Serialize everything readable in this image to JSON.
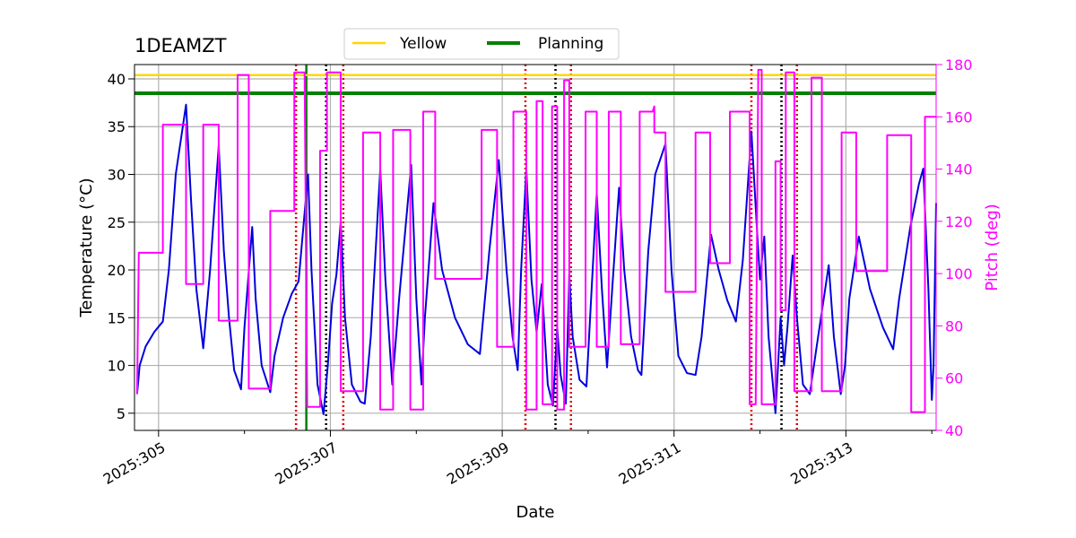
{
  "chart_data": {
    "type": "line",
    "title": "1DEAMZT",
    "xlabel": "Date",
    "ylabel": "Temperature ($^\\circ$C)",
    "ylabel_display": "Temperature (°C)",
    "y2label": "Pitch (deg)",
    "xlim": [
      304.72,
      314.05
    ],
    "ylim": [
      3.2,
      41.5
    ],
    "y2lim": [
      40,
      180
    ],
    "grid": true,
    "legend_position": "top-center",
    "colors": {
      "temperature": "#0000dd",
      "pitch": "#ff00ff",
      "yellow": "#ffd700",
      "planning": "#008000",
      "red_marker": "#dd0000",
      "black_marker": "#000000",
      "grid": "#b0b0b0",
      "right_axis": "#ff00ff"
    },
    "x_ticks": [
      {
        "value": 305,
        "label": "2025:305"
      },
      {
        "value": 307,
        "label": "2025:307"
      },
      {
        "value": 309,
        "label": "2025:309"
      },
      {
        "value": 311,
        "label": "2025:311"
      },
      {
        "value": 313,
        "label": "2025:313"
      }
    ],
    "x_minor_ticks": [
      306,
      308,
      310,
      312,
      314
    ],
    "y_ticks": [
      5,
      10,
      15,
      20,
      25,
      30,
      35,
      40
    ],
    "y2_ticks": [
      40,
      60,
      80,
      100,
      120,
      140,
      160,
      180
    ],
    "limits": [
      {
        "name": "Yellow",
        "value": 40.4,
        "color": "#ffd700"
      },
      {
        "name": "Planning",
        "value": 38.5,
        "color": "#008000"
      }
    ],
    "vertical_markers": [
      {
        "x": 306.6,
        "color": "#dd0000",
        "style": "dotted"
      },
      {
        "x": 306.72,
        "color": "#008000",
        "style": "solid"
      },
      {
        "x": 306.95,
        "color": "#000000",
        "style": "dotted"
      },
      {
        "x": 307.15,
        "color": "#dd0000",
        "style": "dotted"
      },
      {
        "x": 309.27,
        "color": "#dd0000",
        "style": "dotted"
      },
      {
        "x": 309.62,
        "color": "#000000",
        "style": "dotted"
      },
      {
        "x": 309.8,
        "color": "#dd0000",
        "style": "dotted"
      },
      {
        "x": 311.9,
        "color": "#dd0000",
        "style": "dotted"
      },
      {
        "x": 312.25,
        "color": "#000000",
        "style": "dotted"
      },
      {
        "x": 312.43,
        "color": "#dd0000",
        "style": "dotted"
      }
    ],
    "series": [
      {
        "name": "Temperature",
        "axis": "left",
        "color": "#0000dd",
        "points": [
          [
            304.75,
            7.0
          ],
          [
            304.78,
            10.0
          ],
          [
            304.85,
            12.0
          ],
          [
            304.95,
            13.5
          ],
          [
            305.05,
            14.6
          ],
          [
            305.12,
            20.0
          ],
          [
            305.2,
            30.0
          ],
          [
            305.32,
            37.3
          ],
          [
            305.38,
            27.0
          ],
          [
            305.44,
            18.0
          ],
          [
            305.52,
            11.8
          ],
          [
            305.6,
            20.0
          ],
          [
            305.7,
            33.0
          ],
          [
            305.76,
            22.0
          ],
          [
            305.82,
            15.0
          ],
          [
            305.88,
            9.5
          ],
          [
            305.96,
            7.5
          ],
          [
            306.0,
            14.0
          ],
          [
            306.09,
            24.5
          ],
          [
            306.13,
            17.0
          ],
          [
            306.2,
            10.0
          ],
          [
            306.3,
            7.2
          ],
          [
            306.35,
            11.0
          ],
          [
            306.45,
            15.0
          ],
          [
            306.55,
            17.5
          ],
          [
            306.63,
            18.8
          ],
          [
            306.7,
            26.0
          ],
          [
            306.74,
            30.0
          ],
          [
            306.78,
            20.0
          ],
          [
            306.85,
            8.0
          ],
          [
            306.92,
            4.9
          ],
          [
            306.97,
            10.0
          ],
          [
            307.02,
            16.5
          ],
          [
            307.07,
            19.5
          ],
          [
            307.12,
            25.0
          ],
          [
            307.17,
            15.0
          ],
          [
            307.25,
            8.0
          ],
          [
            307.35,
            6.2
          ],
          [
            307.4,
            6.0
          ],
          [
            307.47,
            13.0
          ],
          [
            307.58,
            30.5
          ],
          [
            307.64,
            19.0
          ],
          [
            307.72,
            8.0
          ],
          [
            307.8,
            17.0
          ],
          [
            307.94,
            31.0
          ],
          [
            308.0,
            17.0
          ],
          [
            308.06,
            8.0
          ],
          [
            308.1,
            15.0
          ],
          [
            308.2,
            27.0
          ],
          [
            308.3,
            20.0
          ],
          [
            308.45,
            15.0
          ],
          [
            308.6,
            12.2
          ],
          [
            308.74,
            11.2
          ],
          [
            308.85,
            22.0
          ],
          [
            308.96,
            31.5
          ],
          [
            309.05,
            20.0
          ],
          [
            309.12,
            13.0
          ],
          [
            309.18,
            9.5
          ],
          [
            309.22,
            20.0
          ],
          [
            309.28,
            30.5
          ],
          [
            309.34,
            19.0
          ],
          [
            309.4,
            13.5
          ],
          [
            309.46,
            18.5
          ],
          [
            309.53,
            8.0
          ],
          [
            309.59,
            5.8
          ],
          [
            309.64,
            14.0
          ],
          [
            309.68,
            9.0
          ],
          [
            309.74,
            6.0
          ],
          [
            309.78,
            19.5
          ],
          [
            309.82,
            13.0
          ],
          [
            309.9,
            8.5
          ],
          [
            309.98,
            7.8
          ],
          [
            310.1,
            28.0
          ],
          [
            310.16,
            18.0
          ],
          [
            310.22,
            9.8
          ],
          [
            310.28,
            18.0
          ],
          [
            310.36,
            28.6
          ],
          [
            310.42,
            20.0
          ],
          [
            310.5,
            13.0
          ],
          [
            310.58,
            9.5
          ],
          [
            310.62,
            9.0
          ],
          [
            310.7,
            22.0
          ],
          [
            310.78,
            30.0
          ],
          [
            310.9,
            33.2
          ],
          [
            310.97,
            20.0
          ],
          [
            311.05,
            11.0
          ],
          [
            311.15,
            9.2
          ],
          [
            311.25,
            9.0
          ],
          [
            311.32,
            13.0
          ],
          [
            311.43,
            23.7
          ],
          [
            311.52,
            20.0
          ],
          [
            311.62,
            16.8
          ],
          [
            311.72,
            14.6
          ],
          [
            311.8,
            21.0
          ],
          [
            311.9,
            34.5
          ],
          [
            311.96,
            25.0
          ],
          [
            312.0,
            19.0
          ],
          [
            312.05,
            23.5
          ],
          [
            312.1,
            13.0
          ],
          [
            312.18,
            5.0
          ],
          [
            312.24,
            15.0
          ],
          [
            312.28,
            10.0
          ],
          [
            312.32,
            14.0
          ],
          [
            312.38,
            21.5
          ],
          [
            312.43,
            15.0
          ],
          [
            312.5,
            8.0
          ],
          [
            312.58,
            7.0
          ],
          [
            312.66,
            12.0
          ],
          [
            312.8,
            20.5
          ],
          [
            312.86,
            13.0
          ],
          [
            312.94,
            7.0
          ],
          [
            312.99,
            10.0
          ],
          [
            313.04,
            17.0
          ],
          [
            313.15,
            23.5
          ],
          [
            313.28,
            18.0
          ],
          [
            313.43,
            14.0
          ],
          [
            313.55,
            11.7
          ],
          [
            313.62,
            17.0
          ],
          [
            313.75,
            24.5
          ],
          [
            313.85,
            29.0
          ],
          [
            313.9,
            30.6
          ],
          [
            313.96,
            18.0
          ],
          [
            314.0,
            6.4
          ],
          [
            314.02,
            10.0
          ],
          [
            314.05,
            27.0
          ]
        ]
      },
      {
        "name": "Pitch",
        "axis": "right",
        "color": "#ff00ff",
        "points": [
          [
            304.75,
            54.0
          ],
          [
            304.77,
            108.0
          ],
          [
            305.05,
            108.0
          ],
          [
            305.05,
            157.0
          ],
          [
            305.32,
            157.0
          ],
          [
            305.32,
            96.0
          ],
          [
            305.52,
            96.0
          ],
          [
            305.52,
            157.0
          ],
          [
            305.7,
            157.0
          ],
          [
            305.7,
            82.0
          ],
          [
            305.92,
            82.0
          ],
          [
            305.92,
            176.0
          ],
          [
            306.05,
            176.0
          ],
          [
            306.05,
            56.0
          ],
          [
            306.3,
            56.0
          ],
          [
            306.3,
            124.0
          ],
          [
            306.58,
            124.0
          ],
          [
            306.58,
            177.0
          ],
          [
            306.7,
            177.0
          ],
          [
            306.73,
            49.0
          ],
          [
            306.88,
            49.0
          ],
          [
            306.88,
            147.0
          ],
          [
            306.96,
            147.0
          ],
          [
            306.96,
            177.0
          ],
          [
            307.12,
            177.0
          ],
          [
            307.12,
            55.0
          ],
          [
            307.38,
            55.0
          ],
          [
            307.38,
            154.0
          ],
          [
            307.58,
            154.0
          ],
          [
            307.58,
            48.0
          ],
          [
            307.73,
            48.0
          ],
          [
            307.73,
            155.0
          ],
          [
            307.93,
            155.0
          ],
          [
            307.93,
            48.0
          ],
          [
            308.08,
            48.0
          ],
          [
            308.08,
            162.0
          ],
          [
            308.22,
            162.0
          ],
          [
            308.22,
            98.0
          ],
          [
            308.76,
            98.0
          ],
          [
            308.76,
            155.0
          ],
          [
            308.94,
            155.0
          ],
          [
            308.94,
            72.0
          ],
          [
            309.13,
            72.0
          ],
          [
            309.13,
            162.0
          ],
          [
            309.28,
            162.0
          ],
          [
            309.28,
            48.0
          ],
          [
            309.4,
            48.0
          ],
          [
            309.4,
            166.0
          ],
          [
            309.47,
            166.0
          ],
          [
            309.47,
            50.0
          ],
          [
            309.58,
            50.0
          ],
          [
            309.58,
            164.0
          ],
          [
            309.64,
            164.0
          ],
          [
            309.64,
            48.0
          ],
          [
            309.72,
            48.0
          ],
          [
            309.72,
            174.0
          ],
          [
            309.78,
            174.0
          ],
          [
            309.78,
            72.0
          ],
          [
            309.97,
            72.0
          ],
          [
            309.97,
            162.0
          ],
          [
            310.1,
            162.0
          ],
          [
            310.1,
            72.0
          ],
          [
            310.24,
            72.0
          ],
          [
            310.24,
            162.0
          ],
          [
            310.38,
            162.0
          ],
          [
            310.38,
            73.0
          ],
          [
            310.6,
            73.0
          ],
          [
            310.6,
            162.0
          ],
          [
            310.75,
            162.0
          ],
          [
            310.77,
            164.0
          ],
          [
            310.77,
            154.0
          ],
          [
            310.9,
            154.0
          ],
          [
            310.9,
            93.0
          ],
          [
            311.25,
            93.0
          ],
          [
            311.25,
            154.0
          ],
          [
            311.42,
            154.0
          ],
          [
            311.42,
            104.0
          ],
          [
            311.65,
            104.0
          ],
          [
            311.65,
            162.0
          ],
          [
            311.88,
            162.0
          ],
          [
            311.88,
            50.0
          ],
          [
            311.95,
            50.0
          ],
          [
            311.98,
            178.0
          ],
          [
            312.02,
            178.0
          ],
          [
            312.02,
            50.0
          ],
          [
            312.18,
            50.0
          ],
          [
            312.18,
            143.0
          ],
          [
            312.24,
            143.0
          ],
          [
            312.24,
            86.0
          ],
          [
            312.3,
            86.0
          ],
          [
            312.3,
            177.0
          ],
          [
            312.4,
            177.0
          ],
          [
            312.4,
            55.0
          ],
          [
            312.6,
            55.0
          ],
          [
            312.6,
            175.0
          ],
          [
            312.72,
            175.0
          ],
          [
            312.72,
            55.0
          ],
          [
            312.95,
            55.0
          ],
          [
            312.95,
            154.0
          ],
          [
            313.12,
            154.0
          ],
          [
            313.12,
            101.0
          ],
          [
            313.48,
            101.0
          ],
          [
            313.48,
            153.0
          ],
          [
            313.76,
            153.0
          ],
          [
            313.76,
            47.0
          ],
          [
            313.92,
            47.0
          ],
          [
            313.92,
            160.0
          ],
          [
            314.05,
            160.0
          ]
        ]
      }
    ]
  }
}
